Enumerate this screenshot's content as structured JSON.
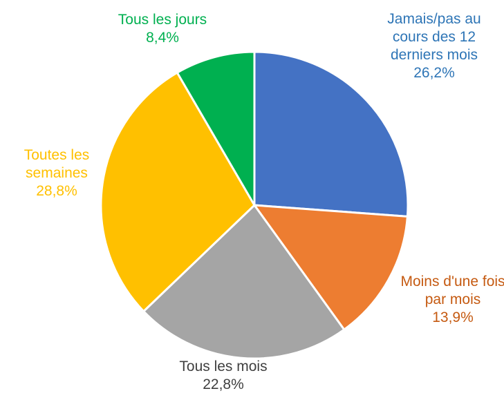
{
  "chart_data": {
    "type": "pie",
    "categories": [
      "Jamais/pas au cours des 12 derniers mois",
      "Moins d'une fois par mois",
      "Tous les mois",
      "Toutes les semaines",
      "Tous les jours"
    ],
    "values": [
      26.2,
      13.9,
      22.8,
      28.8,
      8.4
    ],
    "value_labels": [
      "26,2%",
      "13,9%",
      "22,8%",
      "28,8%",
      "8,4%"
    ],
    "colors": [
      "#4472c4",
      "#ed7d31",
      "#a5a5a5",
      "#ffc000",
      "#00b050"
    ],
    "label_colors": [
      "#2e75b6",
      "#c55a11",
      "#3f3f3f",
      "#ffc000",
      "#00b050"
    ]
  }
}
